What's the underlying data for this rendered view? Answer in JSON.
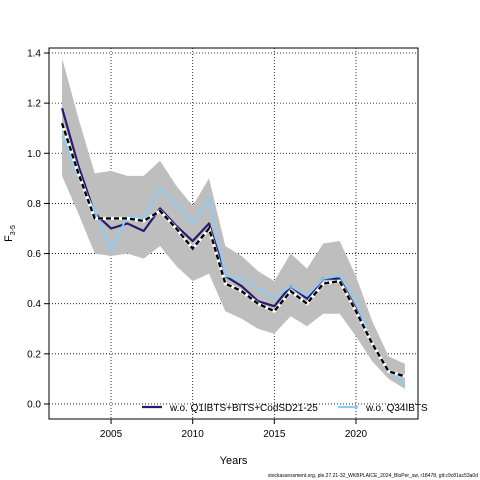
{
  "chart_data": {
    "type": "line",
    "xlabel": "Years",
    "ylabel": "F",
    "ylabel_subscript": "3-5",
    "xlim": [
      2001.2,
      2023.8
    ],
    "ylim": [
      -0.06,
      1.42
    ],
    "x_ticks": [
      2005,
      2010,
      2015,
      2020
    ],
    "y_ticks": [
      0.0,
      0.2,
      0.4,
      0.6,
      0.8,
      1.0,
      1.2,
      1.4
    ],
    "grid": true,
    "years": [
      2002,
      2003,
      2004,
      2005,
      2006,
      2007,
      2008,
      2009,
      2010,
      2011,
      2012,
      2013,
      2014,
      2015,
      2016,
      2017,
      2018,
      2019,
      2020,
      2021,
      2022,
      2023
    ],
    "band": {
      "lower": [
        0.91,
        0.76,
        0.6,
        0.59,
        0.6,
        0.58,
        0.63,
        0.55,
        0.49,
        0.52,
        0.37,
        0.34,
        0.3,
        0.28,
        0.35,
        0.31,
        0.36,
        0.36,
        0.27,
        0.17,
        0.1,
        0.06
      ],
      "upper": [
        1.38,
        1.14,
        0.92,
        0.93,
        0.91,
        0.91,
        0.97,
        0.87,
        0.79,
        0.9,
        0.63,
        0.59,
        0.53,
        0.49,
        0.6,
        0.54,
        0.64,
        0.65,
        0.51,
        0.33,
        0.19,
        0.16
      ],
      "color": "#bebebe"
    },
    "series": [
      {
        "name": "w.o. Q1IBTS+BITS+CodSD21-25",
        "color": "#2a1a6e",
        "style": "solid",
        "values": [
          1.18,
          0.95,
          0.76,
          0.7,
          0.72,
          0.69,
          0.78,
          0.71,
          0.65,
          0.72,
          0.51,
          0.47,
          0.41,
          0.39,
          0.47,
          0.42,
          0.5,
          0.5,
          0.38,
          0.24,
          0.13,
          0.11
        ]
      },
      {
        "name": "w.o. Q34IBTS",
        "color": "#87cefa",
        "style": "solid",
        "values": [
          1.07,
          0.9,
          0.77,
          0.61,
          0.75,
          0.74,
          0.86,
          0.79,
          0.72,
          0.82,
          0.51,
          0.5,
          0.46,
          0.42,
          0.47,
          0.43,
          0.5,
          0.51,
          0.42,
          0.23,
          0.14,
          0.07
        ]
      },
      {
        "name": "",
        "color": "#000000",
        "style": "dashed",
        "values": [
          1.12,
          0.92,
          0.74,
          0.74,
          0.74,
          0.73,
          0.77,
          0.7,
          0.62,
          0.7,
          0.48,
          0.45,
          0.4,
          0.37,
          0.45,
          0.4,
          0.48,
          0.49,
          0.37,
          0.24,
          0.13,
          0.11
        ]
      }
    ],
    "legend_position": "bottom"
  },
  "footer": {
    "text": "stockassessment.org, ple.27.21-32_WKBPLAICE_2024_BloPer_sw, r18478, git:c9c81ac53a0d"
  }
}
